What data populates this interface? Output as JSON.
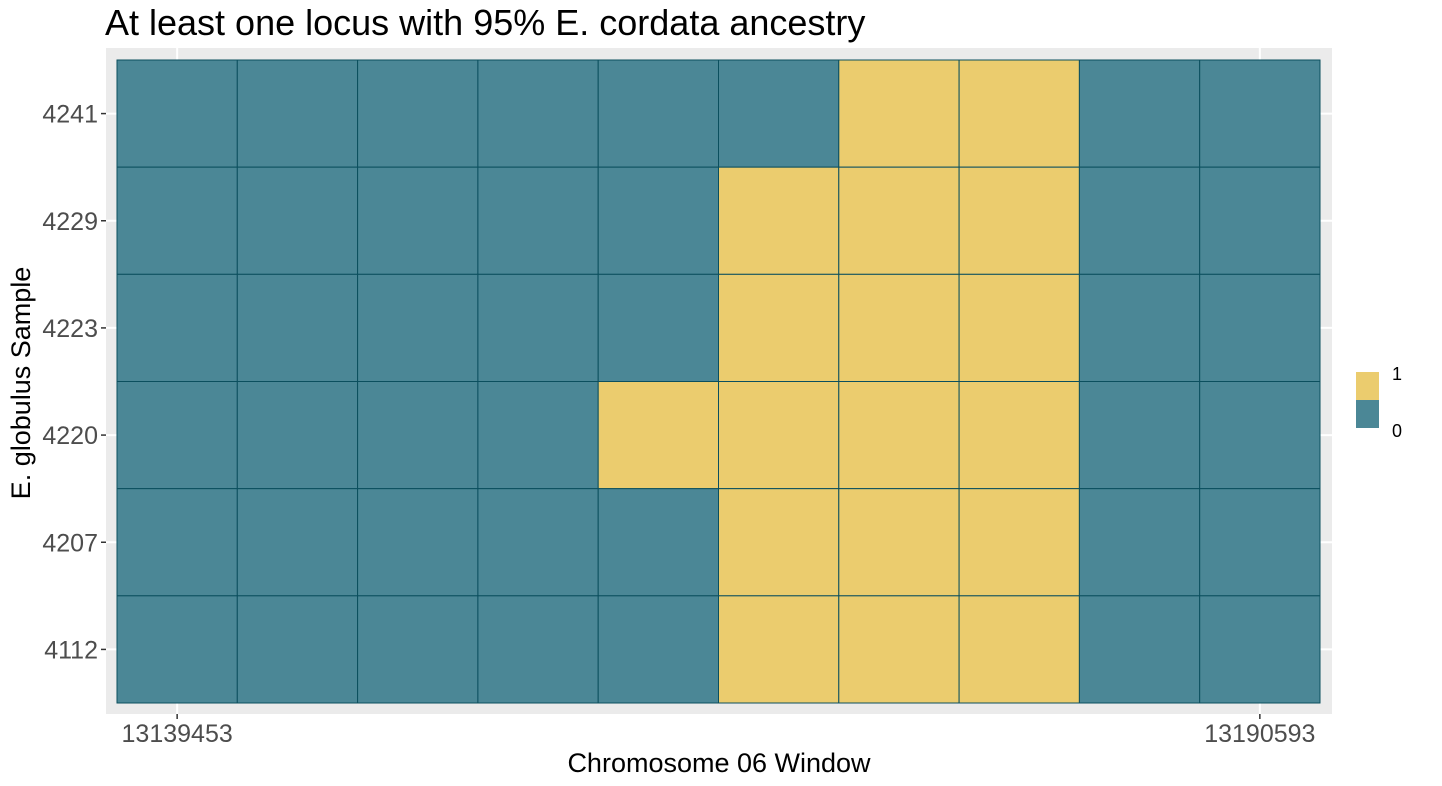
{
  "chart_data": {
    "type": "heatmap",
    "title": "At least one locus with 95% E. cordata ancestry",
    "xlabel": "Chromosome 06 Window",
    "ylabel": "E. globulus Sample",
    "x_tick_labels": [
      "13139453",
      "13190593"
    ],
    "rows": [
      "4241",
      "4229",
      "4223",
      "4220",
      "4207",
      "4112"
    ],
    "n_columns": 10,
    "values": [
      [
        0,
        0,
        0,
        0,
        0,
        0,
        1,
        1,
        0,
        0
      ],
      [
        0,
        0,
        0,
        0,
        0,
        1,
        1,
        1,
        0,
        0
      ],
      [
        0,
        0,
        0,
        0,
        0,
        1,
        1,
        1,
        0,
        0
      ],
      [
        0,
        0,
        0,
        0,
        1,
        1,
        1,
        1,
        0,
        0
      ],
      [
        0,
        0,
        0,
        0,
        0,
        1,
        1,
        1,
        0,
        0
      ],
      [
        0,
        0,
        0,
        0,
        0,
        1,
        1,
        1,
        0,
        0
      ]
    ],
    "legend": {
      "placement": "right",
      "entries": [
        {
          "label": "1",
          "value": 1,
          "color": "#ebcc6e"
        },
        {
          "label": "0",
          "value": 0,
          "color": "#4b8796"
        }
      ]
    },
    "colors": {
      "panel_background": "#ebebeb",
      "cell_border": "#0b4f5e"
    },
    "grid": true
  }
}
